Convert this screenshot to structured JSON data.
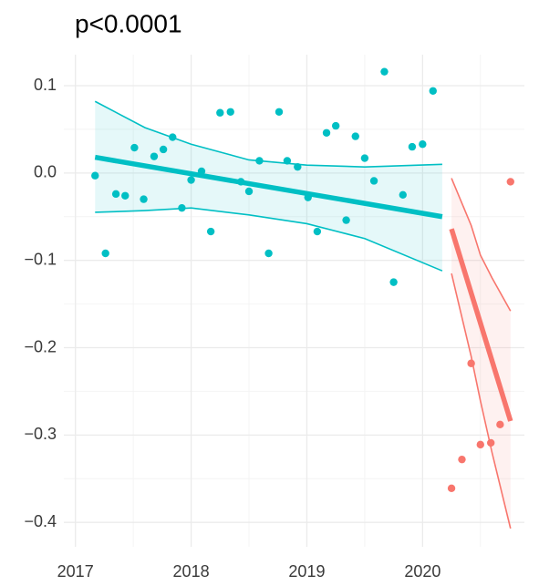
{
  "chart_data": {
    "type": "scatter",
    "title": "p<0.0001",
    "xlim": [
      2016.9,
      2020.88
    ],
    "ylim": [
      -0.428,
      0.1355
    ],
    "xticks": [
      2017,
      2018,
      2019,
      2020
    ],
    "yticks": [
      0.1,
      {
        "value": 0,
        "label": "0.0"
      },
      {
        "value": -0.1,
        "label": "−0.1"
      },
      {
        "value": -0.2,
        "label": "−0.2"
      },
      {
        "value": -0.3,
        "label": "−0.3"
      },
      {
        "value": -0.4,
        "label": "−0.4"
      }
    ],
    "xminor": [
      2017.5,
      2018.5,
      2019.5,
      2020.5
    ],
    "yminor": [
      0.05,
      -0.05,
      -0.15,
      -0.25,
      -0.35
    ],
    "grid": true,
    "series": [
      {
        "color": "#00BFC4",
        "x": [
          2017.17,
          2017.26,
          2017.35,
          2017.43,
          2017.51,
          2017.59,
          2017.68,
          2017.76,
          2017.84,
          2017.92,
          2018.0,
          2018.09,
          2018.17,
          2018.25,
          2018.34,
          2018.43,
          2018.5,
          2018.59,
          2018.67,
          2018.76,
          2018.83,
          2018.92,
          2019.01,
          2019.09,
          2019.17,
          2019.25,
          2019.34,
          2019.42,
          2019.5,
          2019.58,
          2019.67,
          2019.75,
          2019.83,
          2019.91,
          2020.0,
          2020.09
        ],
        "values": [
          -0.003,
          -0.092,
          -0.024,
          -0.026,
          0.029,
          -0.03,
          0.019,
          0.027,
          0.041,
          -0.04,
          -0.008,
          0.002,
          -0.067,
          0.069,
          0.07,
          -0.01,
          -0.021,
          0.014,
          -0.092,
          0.07,
          0.014,
          0.007,
          -0.028,
          -0.067,
          0.046,
          0.054,
          -0.054,
          0.042,
          0.017,
          -0.009,
          0.116,
          -0.125,
          -0.025,
          0.03,
          0.033,
          0.094
        ],
        "fit": {
          "x": [
            2017.17,
            2020.17
          ],
          "values": [
            0.018,
            -0.05
          ]
        },
        "band": {
          "x": [
            2017.17,
            2017.6,
            2018.0,
            2018.5,
            2019.0,
            2019.5,
            2020.17
          ],
          "upper": [
            0.082,
            0.052,
            0.033,
            0.015,
            0.009,
            0.007,
            0.01
          ],
          "lower": [
            -0.045,
            -0.043,
            -0.04,
            -0.048,
            -0.058,
            -0.075,
            -0.112
          ]
        }
      },
      {
        "color": "#F8766D",
        "x": [
          2020.25,
          2020.34,
          2020.42,
          2020.5,
          2020.59,
          2020.67,
          2020.76
        ],
        "values": [
          -0.361,
          -0.328,
          -0.218,
          -0.311,
          -0.309,
          -0.288,
          -0.01
        ],
        "fit": {
          "x": [
            2020.25,
            2020.76
          ],
          "values": [
            -0.064,
            -0.284
          ]
        },
        "band": {
          "x": [
            2020.25,
            2020.42,
            2020.5,
            2020.6,
            2020.76
          ],
          "upper": [
            -0.006,
            -0.06,
            -0.094,
            -0.12,
            -0.158
          ],
          "lower": [
            -0.115,
            -0.21,
            -0.261,
            -0.32,
            -0.407
          ]
        }
      }
    ]
  }
}
